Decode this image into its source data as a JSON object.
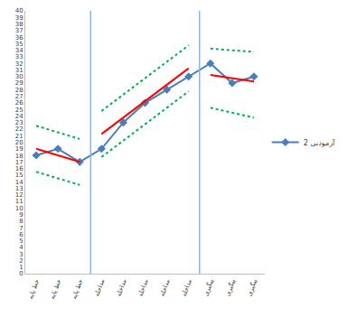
{
  "chart_data": {
    "type": "line",
    "categories": [
      "خط پایه",
      "خط پایه",
      "خط پایه",
      "مداخله",
      "مداخله",
      "مداخله",
      "مداخله",
      "مداخله",
      "پیگیری",
      "پیگیری",
      "پیگیری"
    ],
    "series": [
      {
        "name": "آزمودنی 2",
        "color": "#4a7ebb",
        "marker": "diamond",
        "line_style": "solid",
        "values": [
          18,
          19,
          17,
          19,
          23,
          26,
          28,
          30,
          32,
          29,
          30
        ]
      },
      {
        "color": "#ff0000",
        "line_style": "solid",
        "values": [
          19,
          18,
          17,
          null,
          null,
          null,
          null,
          null,
          null,
          null,
          null
        ]
      },
      {
        "color": "#00b050",
        "line_style": "dot",
        "values": [
          22.5,
          21.5,
          20.5,
          null,
          null,
          null,
          null,
          null,
          null,
          null,
          null
        ]
      },
      {
        "color": "#00b050",
        "line_style": "dot",
        "values": [
          15.5,
          14.5,
          13.5,
          null,
          null,
          null,
          null,
          null,
          null,
          null,
          null
        ]
      },
      {
        "color": "#ff0000",
        "line_style": "solid",
        "values": [
          null,
          null,
          null,
          21.25,
          23.75,
          26.25,
          28.75,
          31.25,
          null,
          null,
          null
        ]
      },
      {
        "color": "#00b050",
        "line_style": "dot",
        "values": [
          null,
          null,
          null,
          24.75,
          27.25,
          29.75,
          32.25,
          34.75,
          null,
          null,
          null
        ]
      },
      {
        "color": "#00b050",
        "line_style": "dot",
        "values": [
          null,
          null,
          null,
          17.75,
          20.25,
          22.75,
          25.25,
          27.75,
          null,
          null,
          null
        ]
      },
      {
        "color": "#ff0000",
        "line_style": "solid",
        "values": [
          null,
          null,
          null,
          null,
          null,
          null,
          null,
          null,
          30.25,
          29.75,
          29.25
        ]
      },
      {
        "color": "#00b050",
        "line_style": "dot",
        "values": [
          null,
          null,
          null,
          null,
          null,
          null,
          null,
          null,
          34.25,
          34,
          33.75
        ]
      },
      {
        "color": "#00b050",
        "line_style": "dot",
        "values": [
          null,
          null,
          null,
          null,
          null,
          null,
          null,
          null,
          25.25,
          24.5,
          23.75
        ]
      }
    ],
    "ylim": [
      0,
      40
    ],
    "yticks": [
      0,
      1,
      2,
      3,
      4,
      5,
      6,
      7,
      8,
      9,
      10,
      11,
      12,
      13,
      14,
      15,
      16,
      17,
      18,
      19,
      20,
      21,
      22,
      23,
      24,
      25,
      26,
      27,
      28,
      29,
      30,
      31,
      32,
      33,
      34,
      35,
      36,
      37,
      38,
      39,
      40
    ],
    "grid": false,
    "legend": "right"
  }
}
